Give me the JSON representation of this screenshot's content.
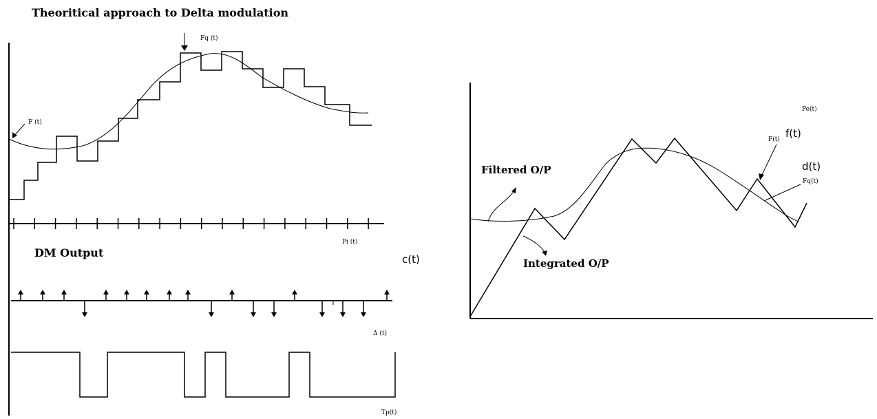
{
  "left_figure": {
    "title": "Theoritical approach to Delta modulation",
    "labels": {
      "fq": "Fq (t)",
      "f": "F (t)",
      "pi": "Pi (t)",
      "dm_output": "DM Output",
      "ct": "c(t)",
      "delta": "Δ (t)",
      "tpx": "Tp(t)"
    },
    "pulse_directions": [
      "up",
      "up",
      "up",
      "down",
      "up",
      "up",
      "up",
      "up",
      "up",
      "down",
      "up",
      "down",
      "down",
      "up",
      "down",
      "down",
      "down",
      "up"
    ]
  },
  "right_figure": {
    "labels": {
      "pe": "Pe(t)",
      "ft_hand": "f(t)",
      "ft": "F(t)",
      "dt_hand": "d(t)",
      "fq": "Fq(t)",
      "filtered": "Filtered O/P",
      "integrated": "Integrated O/P"
    }
  }
}
